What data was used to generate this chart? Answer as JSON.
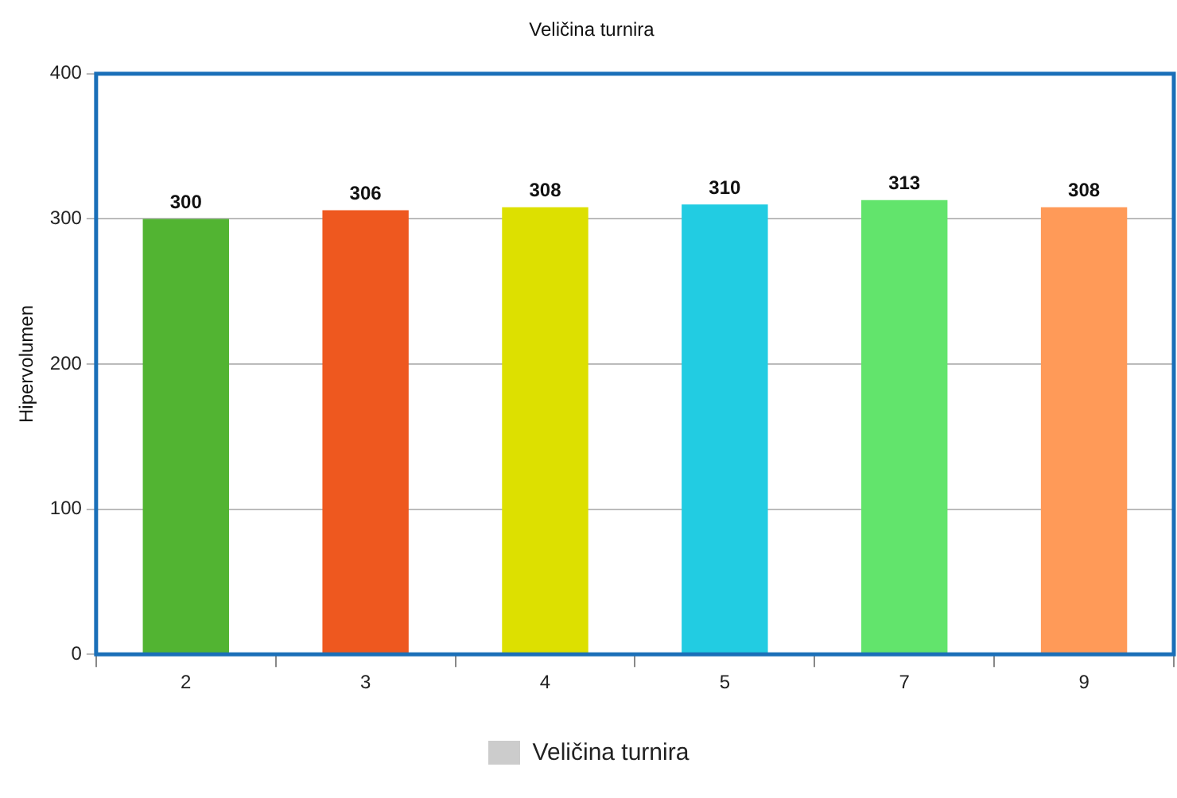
{
  "chart_data": {
    "type": "bar",
    "title": "Veličina turnira",
    "ylabel": "Hipervolumen",
    "categories": [
      "2",
      "3",
      "4",
      "5",
      "7",
      "9"
    ],
    "series": [
      {
        "name": "Veličina turnira",
        "color": "#cccccc",
        "values": [
          300,
          306,
          308,
          310,
          313,
          308
        ],
        "colors": [
          "#52b432",
          "#ee581f",
          "#dde000",
          "#22cce2",
          "#62e46c",
          "#ff9a58"
        ]
      }
    ],
    "ylim": [
      0,
      400
    ],
    "yticks": [
      0,
      100,
      200,
      300,
      400
    ],
    "grid": "y",
    "legend": "bottom",
    "data_labels": true
  }
}
